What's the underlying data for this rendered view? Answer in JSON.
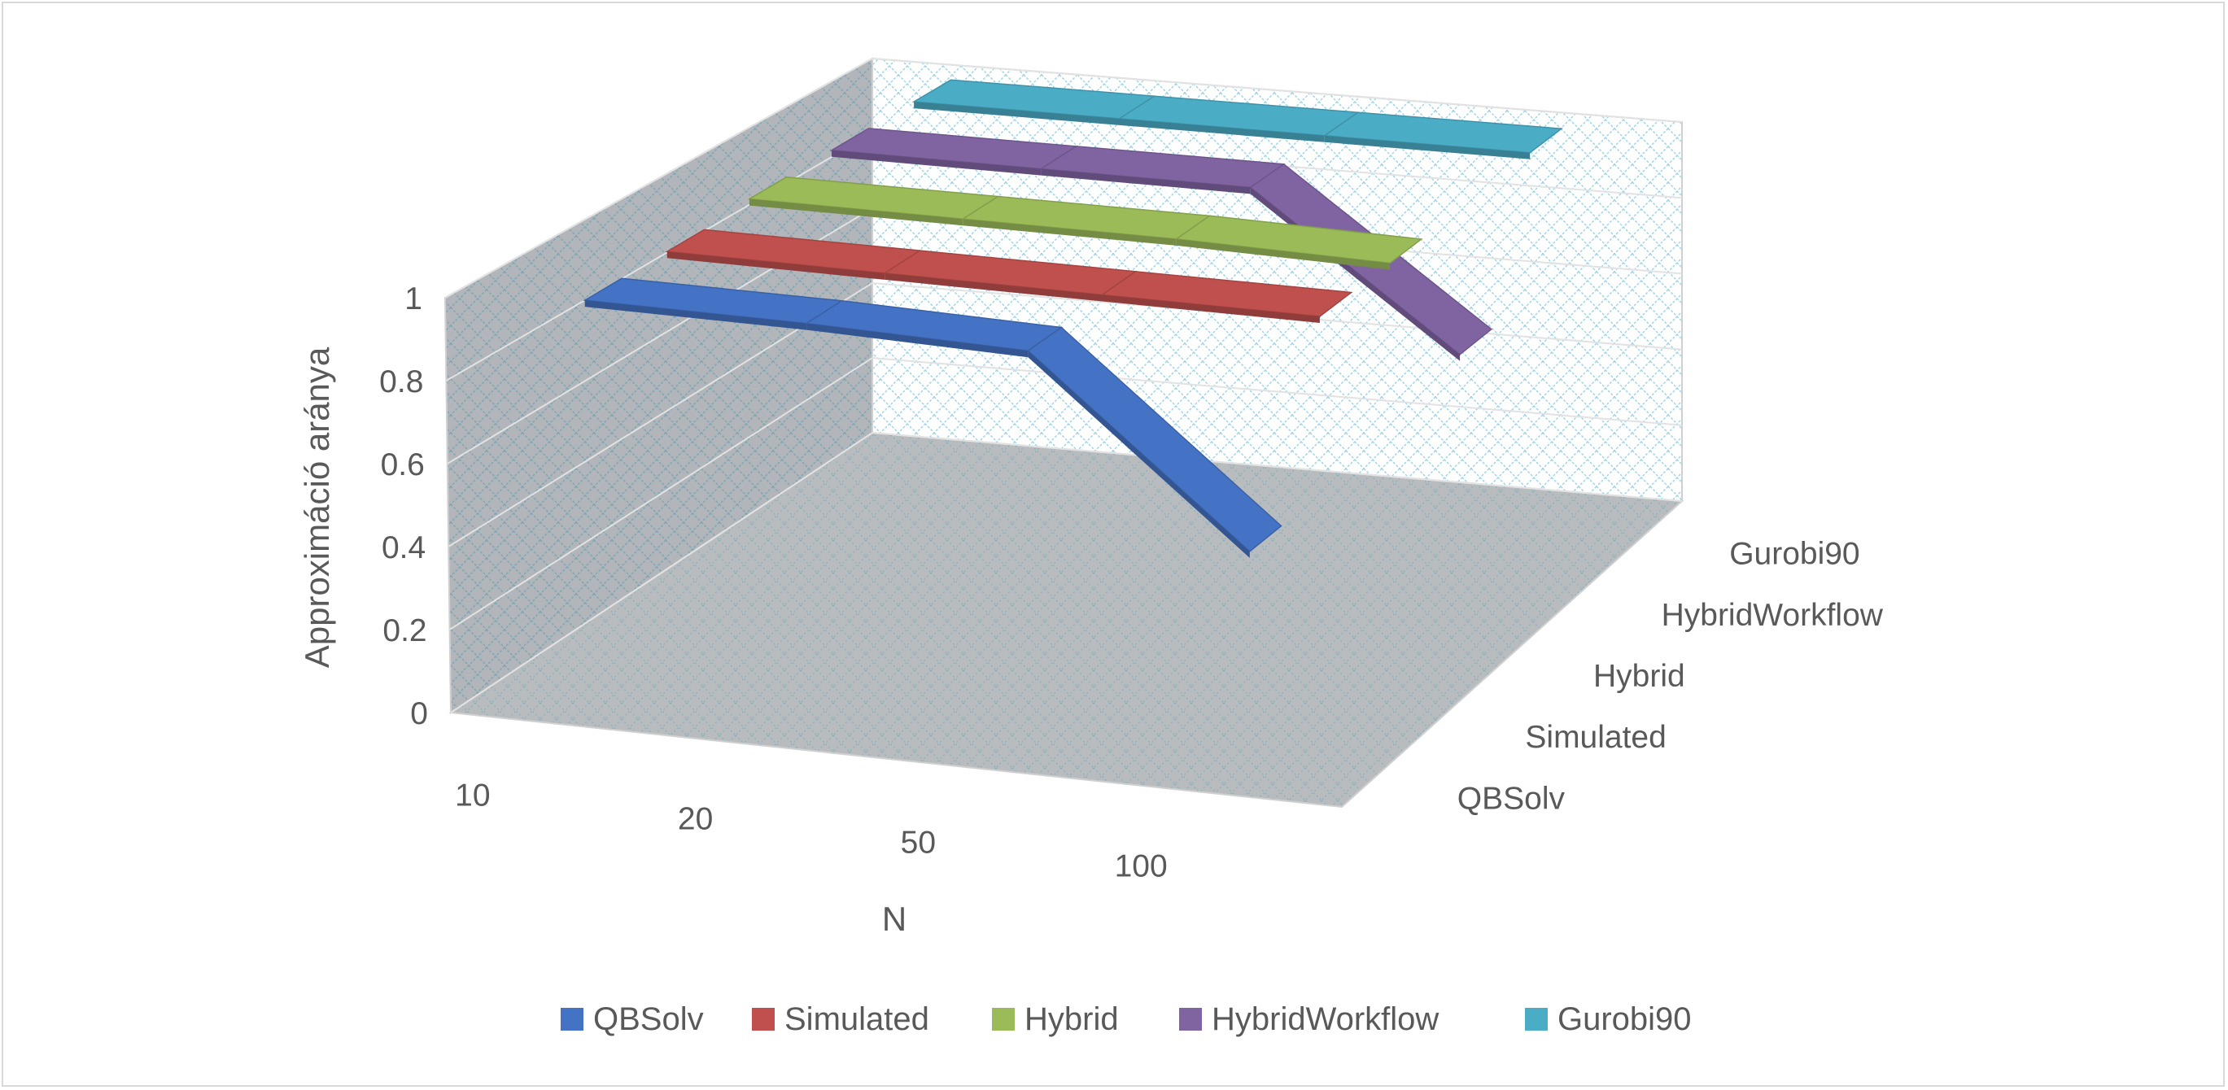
{
  "chart_data": {
    "type": "line",
    "variant": "3d-ribbon",
    "title": "",
    "xlabel": "N",
    "ylabel": "Approximáció aránya",
    "x": [
      "10",
      "20",
      "50",
      "100"
    ],
    "depth_categories": [
      "QBSolv",
      "Simulated",
      "Hybrid",
      "HybridWorkflow",
      "Gurobi90"
    ],
    "y_ticks": [
      "0",
      "0.2",
      "0.4",
      "0.6",
      "0.8",
      "1"
    ],
    "ylim": [
      0,
      1
    ],
    "legend_position": "bottom",
    "grid": true,
    "series": [
      {
        "name": "QBSolv",
        "color": "#4472c4",
        "values": [
          0.99,
          0.99,
          0.98,
          0.55
        ]
      },
      {
        "name": "Simulated",
        "color": "#c0504d",
        "values": [
          0.99,
          0.99,
          0.99,
          0.99
        ]
      },
      {
        "name": "Hybrid",
        "color": "#9bbb59",
        "values": [
          1.0,
          1.0,
          1.0,
          0.99
        ]
      },
      {
        "name": "HybridWorkflow",
        "color": "#8064a2",
        "values": [
          1.0,
          1.0,
          1.0,
          0.62
        ]
      },
      {
        "name": "Gurobi90",
        "color": "#4bacc6",
        "values": [
          1.0,
          1.0,
          1.0,
          1.0
        ]
      }
    ]
  }
}
